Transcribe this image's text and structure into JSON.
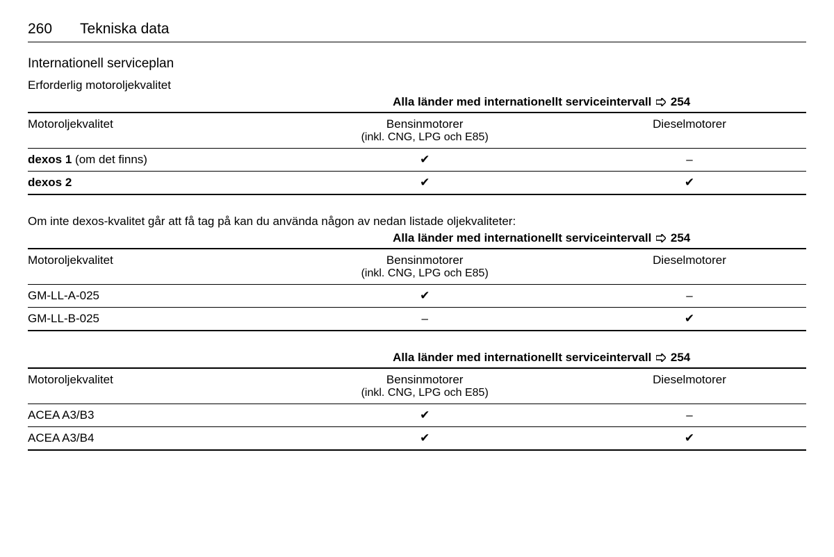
{
  "header": {
    "page_number": "260",
    "section": "Tekniska data"
  },
  "title": "Internationell serviceplan",
  "subtitle": "Erforderlig motoroljekvalitet",
  "caption": {
    "text": "Alla länder med internationellt serviceintervall",
    "ref": "254"
  },
  "columns": {
    "c1": "Motoroljekvalitet",
    "c2_line1": "Bensinmotorer",
    "c2_line2": "(inkl. CNG, LPG och E85)",
    "c3": "Dieselmotorer"
  },
  "tbl1": {
    "rows": [
      {
        "label_bold": "dexos 1",
        "label_rest": " (om det finns)",
        "petrol": "✔",
        "diesel": "–"
      },
      {
        "label_bold": "dexos 2",
        "label_rest": "",
        "petrol": "✔",
        "diesel": "✔"
      }
    ]
  },
  "note": "Om inte dexos-kvalitet går att få tag på kan du använda någon av nedan listade oljekvaliteter:",
  "tbl2": {
    "rows": [
      {
        "label": "GM-LL-A-025",
        "petrol": "✔",
        "diesel": "–"
      },
      {
        "label": "GM-LL-B-025",
        "petrol": "–",
        "diesel": "✔"
      }
    ]
  },
  "tbl3": {
    "rows": [
      {
        "label": "ACEA A3/B3",
        "petrol": "✔",
        "diesel": "–"
      },
      {
        "label": "ACEA A3/B4",
        "petrol": "✔",
        "diesel": "✔"
      }
    ]
  }
}
